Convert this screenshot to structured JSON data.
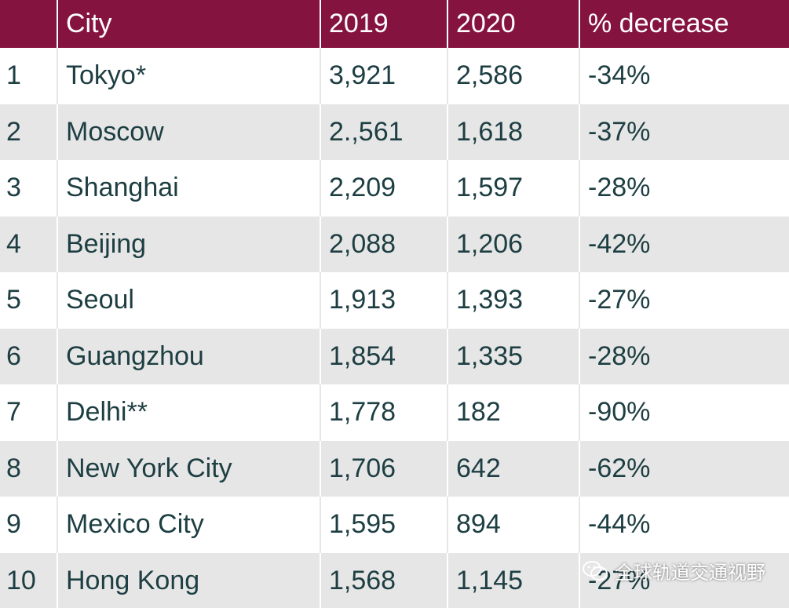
{
  "table": {
    "headers": [
      "",
      "City",
      "2019",
      "2020",
      "% decrease"
    ],
    "rows": [
      {
        "rank": "1",
        "city": "Tokyo*",
        "y2019": "3,921",
        "y2020": "2,586",
        "decrease": "-34%"
      },
      {
        "rank": "2",
        "city": "Moscow",
        "y2019": "2.,561",
        "y2020": "1,618",
        "decrease": "-37%"
      },
      {
        "rank": "3",
        "city": "Shanghai",
        "y2019": "2,209",
        "y2020": "1,597",
        "decrease": "-28%"
      },
      {
        "rank": "4",
        "city": "Beijing",
        "y2019": "2,088",
        "y2020": "1,206",
        "decrease": "-42%"
      },
      {
        "rank": "5",
        "city": "Seoul",
        "y2019": "1,913",
        "y2020": "1,393",
        "decrease": "-27%"
      },
      {
        "rank": "6",
        "city": "Guangzhou",
        "y2019": "1,854",
        "y2020": "1,335",
        "decrease": "-28%"
      },
      {
        "rank": "7",
        "city": "Delhi**",
        "y2019": "1,778",
        "y2020": "182",
        "decrease": "-90%"
      },
      {
        "rank": "8",
        "city": "New York City",
        "y2019": "1,706",
        "y2020": "642",
        "decrease": "-62%"
      },
      {
        "rank": "9",
        "city": "Mexico City",
        "y2019": "1,595",
        "y2020": "894",
        "decrease": "-44%"
      },
      {
        "rank": "10",
        "city": "Hong Kong",
        "y2019": "1,568",
        "y2020": "1,145",
        "decrease": "-27%"
      }
    ]
  },
  "watermark": {
    "text": "全球轨道交通视野",
    "icon": "wechat-icon"
  },
  "colors": {
    "header_bg": "#85133f",
    "header_text": "#ffffff",
    "body_text": "#1d3e42",
    "stripe": "#e6e6e6"
  }
}
